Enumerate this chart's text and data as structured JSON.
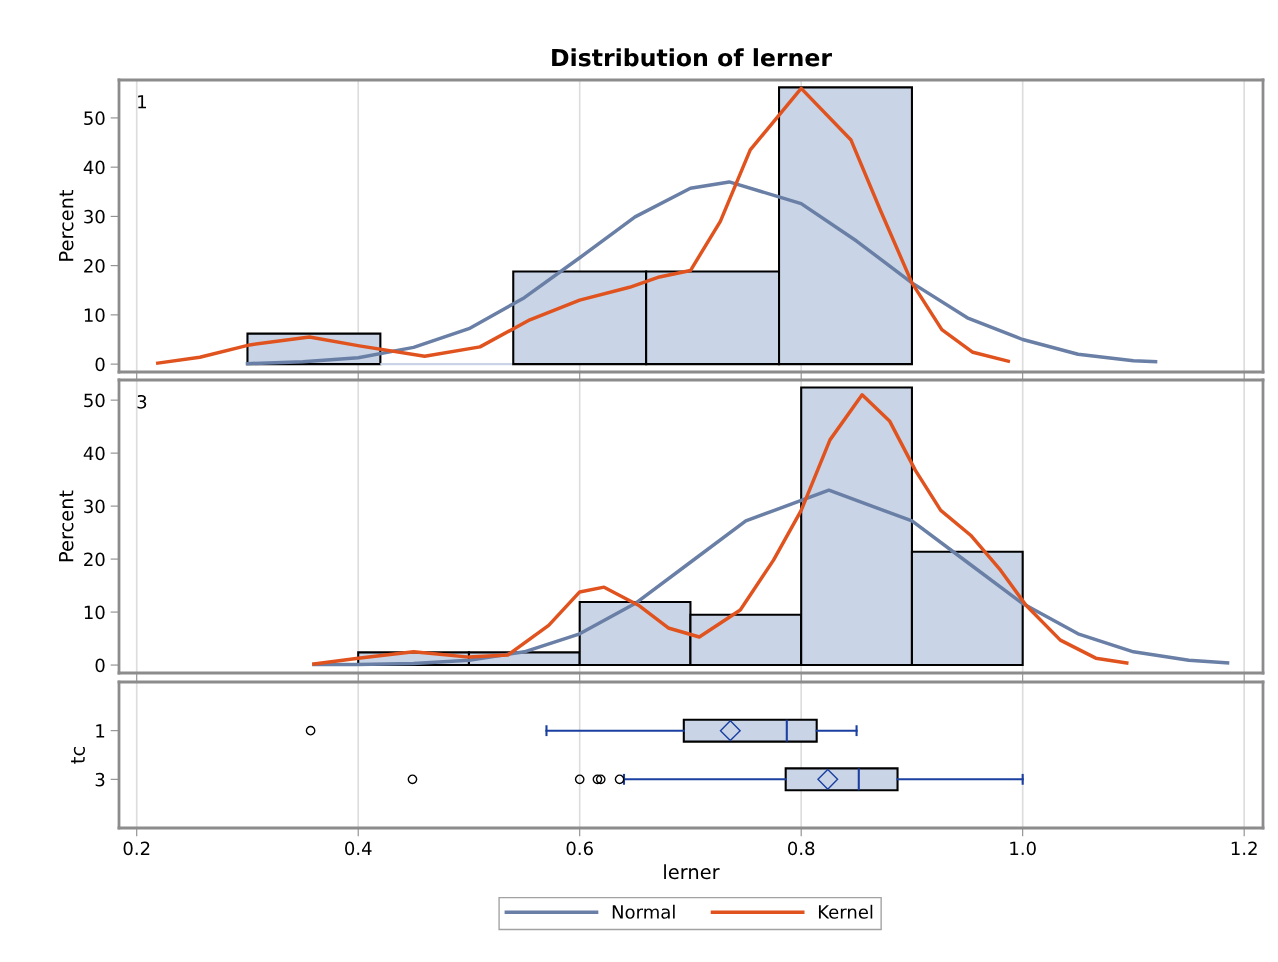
{
  "chart_data": [
    {
      "type": "histogram",
      "title": "Distribution of lerner",
      "ylabel": "Percent",
      "annotations": [
        "1"
      ],
      "bins": [
        0.3,
        0.42,
        0.54,
        0.66,
        0.78,
        0.9
      ],
      "values": [
        6.2,
        0,
        18.8,
        18.8,
        56.2
      ],
      "color": "#c9d5e6",
      "xlim": [
        0.184,
        1.217
      ],
      "ylim": [
        -1.6,
        57.7
      ],
      "yticks": [
        0,
        10,
        20,
        30,
        40,
        50
      ],
      "tick_labels": "y",
      "grid": "x",
      "legend": "bottom",
      "series": [
        {
          "name": "Normal",
          "type": "line",
          "color": "#6a7fa6",
          "x": [
            0.3,
            0.35,
            0.4,
            0.45,
            0.5,
            0.55,
            0.6,
            0.65,
            0.7,
            0.735,
            0.8,
            0.85,
            0.9,
            0.95,
            1.0,
            1.05,
            1.1,
            1.12
          ],
          "values": [
            0.1,
            0.5,
            1.3,
            3.4,
            7.2,
            13.5,
            21.6,
            29.9,
            35.7,
            37,
            32.6,
            25,
            16.5,
            9.4,
            5,
            2,
            0.7,
            0.5
          ]
        },
        {
          "name": "Kernel",
          "type": "line",
          "color": "#e0531f",
          "x": [
            0.219,
            0.257,
            0.302,
            0.356,
            0.401,
            0.46,
            0.51,
            0.555,
            0.6,
            0.645,
            0.672,
            0.7,
            0.727,
            0.754,
            0.8,
            0.845,
            0.872,
            0.9,
            0.927,
            0.955,
            0.987
          ],
          "values": [
            0.2,
            1.4,
            3.9,
            5.5,
            3.7,
            1.6,
            3.5,
            9,
            13,
            15.6,
            17.7,
            19,
            29,
            43.5,
            56,
            45.5,
            31,
            16.5,
            7,
            2.4,
            0.6
          ]
        }
      ]
    },
    {
      "type": "histogram",
      "ylabel": "Percent",
      "annotations": [
        "3"
      ],
      "bins": [
        0.4,
        0.5,
        0.6,
        0.7,
        0.8,
        0.9,
        1.0
      ],
      "values": [
        2.4,
        2.4,
        11.9,
        9.5,
        52.4,
        21.4
      ],
      "color": "#c9d5e6",
      "xlim": [
        0.184,
        1.217
      ],
      "ylim": [
        -1.5,
        53.8
      ],
      "yticks": [
        0,
        10,
        20,
        30,
        40,
        50
      ],
      "tick_labels": "y",
      "grid": "x",
      "series": [
        {
          "type": "line",
          "color": "#6a7fa6",
          "x": [
            0.36,
            0.4,
            0.45,
            0.5,
            0.55,
            0.6,
            0.65,
            0.7,
            0.75,
            0.825,
            0.9,
            0.95,
            1.0,
            1.05,
            1.1,
            1.15,
            1.185
          ],
          "values": [
            0.1,
            0.1,
            0.3,
            0.9,
            2.5,
            5.9,
            11.6,
            19.4,
            27.2,
            33,
            27.2,
            19.4,
            11.6,
            5.9,
            2.5,
            0.9,
            0.4
          ]
        },
        {
          "type": "line",
          "color": "#e0531f",
          "x": [
            0.36,
            0.4,
            0.45,
            0.5,
            0.535,
            0.572,
            0.6,
            0.622,
            0.653,
            0.68,
            0.708,
            0.745,
            0.775,
            0.8,
            0.826,
            0.855,
            0.88,
            0.903,
            0.926,
            0.953,
            0.98,
            1.003,
            1.034,
            1.066,
            1.094
          ],
          "values": [
            0.2,
            1.3,
            2.5,
            1.5,
            1.9,
            7.5,
            13.8,
            14.7,
            11.3,
            7,
            5.3,
            10.4,
            19.8,
            29.2,
            42.5,
            51,
            46,
            36.8,
            29.2,
            24.5,
            17.9,
            11.3,
            4.7,
            1.3,
            0.4
          ]
        }
      ]
    },
    {
      "type": "box",
      "orientation": "horizontal",
      "xlabel": "lerner",
      "ylabel": "tc",
      "categories": [
        "1",
        "3"
      ],
      "color": "#c9d5e6",
      "xlim": [
        0.184,
        1.217
      ],
      "xticks": [
        0.2,
        0.4,
        0.6,
        0.8,
        {
          "value": 1,
          "label": "1.0"
        },
        1.2
      ],
      "grid": "x",
      "boxes": [
        {
          "low": 0.57,
          "q1": 0.694,
          "median": 0.787,
          "q3": 0.814,
          "high": 0.85,
          "mean": 0.736,
          "outliers": [
            0.357
          ]
        },
        {
          "low": 0.64,
          "q1": 0.786,
          "median": 0.852,
          "q3": 0.887,
          "high": 1.0,
          "mean": 0.824,
          "outliers": [
            0.449,
            0.6,
            0.616,
            0.619,
            0.636
          ]
        }
      ]
    }
  ]
}
